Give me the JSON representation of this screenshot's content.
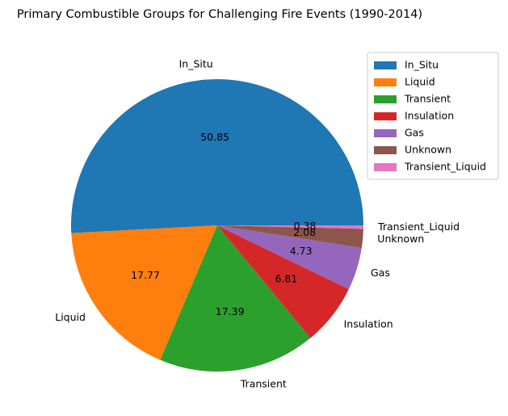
{
  "chart_data": {
    "type": "pie",
    "title": "Primary Combustible Groups for Challenging Fire Events (1990-2014)",
    "categories": [
      "In_Situ",
      "Liquid",
      "Transient",
      "Insulation",
      "Gas",
      "Unknown",
      "Transient_Liquid"
    ],
    "values": [
      50.85,
      17.77,
      17.39,
      6.81,
      4.73,
      2.08,
      0.38
    ],
    "value_labels": [
      "50.85",
      "17.77",
      "17.39",
      "6.81",
      "4.73",
      "2.08",
      "0.38"
    ],
    "colors": [
      "#1f77b4",
      "#ff7f0e",
      "#2ca02c",
      "#d62728",
      "#9467bd",
      "#8c564b",
      "#e377c2"
    ],
    "start_angle_deg": 0,
    "direction": "counterclockwise",
    "legend": {
      "position": "upper-right-outside",
      "entries": [
        "In_Situ",
        "Liquid",
        "Transient",
        "Insulation",
        "Gas",
        "Unknown",
        "Transient_Liquid"
      ]
    }
  }
}
